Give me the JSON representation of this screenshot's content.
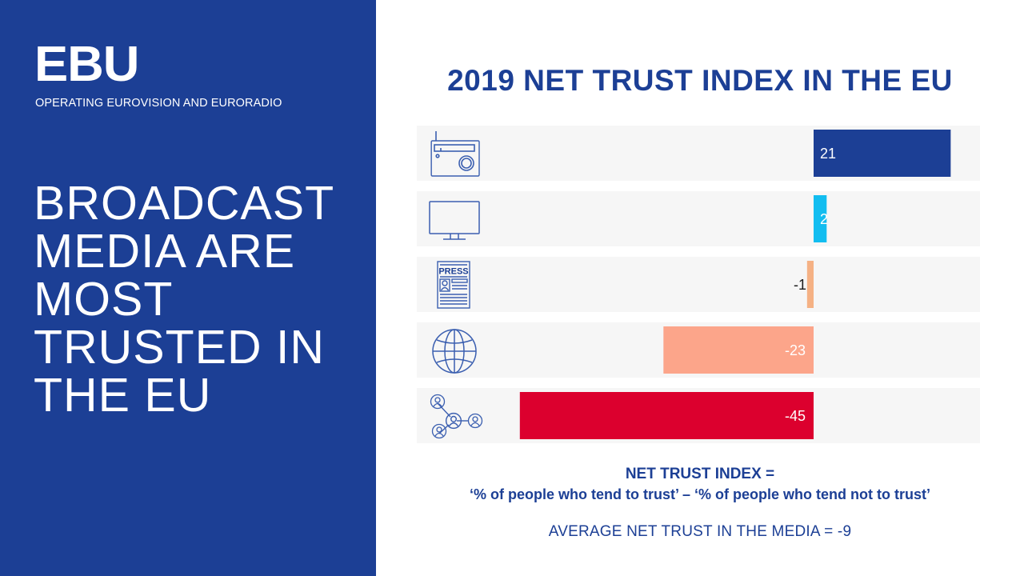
{
  "brand": {
    "logo": "EBU",
    "tagline": "OPERATING EUROVISION AND EURORADIO",
    "primary_color": "#1c3f95"
  },
  "headline": {
    "lines": [
      "BROADCAST",
      "MEDIA ARE",
      "MOST",
      "TRUSTED IN",
      "THE EU"
    ]
  },
  "footnotes": {
    "definition_title": "NET TRUST INDEX =",
    "definition_formula": "‘% of people who tend to trust’ – ‘% of people who tend not to trust’",
    "average": "AVERAGE NET TRUST IN THE MEDIA = -9"
  },
  "chart_data": {
    "type": "bar",
    "orientation": "horizontal",
    "title": "2019 NET TRUST INDEX IN THE EU",
    "xlabel": "",
    "ylabel": "",
    "categories": [
      "Radio",
      "Television",
      "Written press",
      "Internet",
      "Social networks"
    ],
    "category_icons": [
      "radio-icon",
      "tv-icon",
      "press-icon",
      "globe-icon",
      "social-network-icon"
    ],
    "values": [
      21,
      2,
      -1,
      -23,
      -45
    ],
    "value_labels": [
      "21",
      "2",
      "-1",
      "-23",
      "-45"
    ],
    "colors": [
      "#1c3f95",
      "#12bdf0",
      "#f5b184",
      "#fca58a",
      "#dc002e"
    ],
    "label_colors": [
      "#ffffff",
      "#ffffff",
      "#1a1a1a",
      "#ffffff",
      "#ffffff"
    ],
    "xlim": [
      -62,
      25
    ],
    "grid": false,
    "legend": "none",
    "row_background": "#f6f6f6"
  }
}
